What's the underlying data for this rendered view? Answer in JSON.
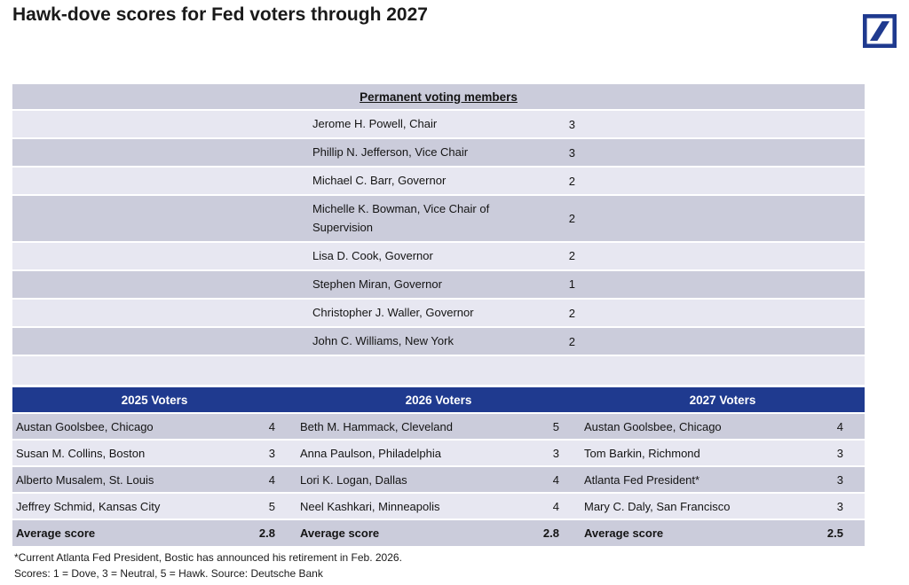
{
  "page_title": "Hawk-dove scores for Fed voters through 2027",
  "icons": {
    "logo": "deutsche-bank-logo"
  },
  "colors": {
    "accent_navy": "#1F3A8F",
    "row_dark": "#cbccdb",
    "row_light": "#e7e7f1",
    "text": "#141414",
    "header_text": "#ffffff"
  },
  "chart_data": {
    "type": "table",
    "title": "Hawk-dove scores for Fed voters through 2027",
    "score_scale": "1 = Dove, 3 = Neutral, 5 = Hawk",
    "permanent": {
      "header": "Permanent voting members",
      "rows": [
        {
          "name": "Jerome H. Powell, Chair",
          "score": "3"
        },
        {
          "name": "Phillip N. Jefferson, Vice Chair",
          "score": "3"
        },
        {
          "name": "Michael C. Barr, Governor",
          "score": "2"
        },
        {
          "name": "Michelle K. Bowman, Vice Chair of Supervision",
          "score": "2"
        },
        {
          "name": "Lisa D. Cook, Governor",
          "score": "2"
        },
        {
          "name": "Stephen Miran, Governor",
          "score": "1"
        },
        {
          "name": "Christopher J. Waller, Governor",
          "score": "2"
        },
        {
          "name": "John C. Williams, New York",
          "score": "2"
        }
      ]
    },
    "voters": {
      "columns": [
        {
          "header": "2025 Voters",
          "rows": [
            {
              "name": "Austan Goolsbee, Chicago",
              "score": "4"
            },
            {
              "name": "Susan M. Collins, Boston",
              "score": "3"
            },
            {
              "name": "Alberto Musalem, St. Louis",
              "score": "4"
            },
            {
              "name": "Jeffrey Schmid, Kansas City",
              "score": "5"
            }
          ],
          "average_label": "Average score",
          "average": "2.8"
        },
        {
          "header": "2026 Voters",
          "rows": [
            {
              "name": "Beth M. Hammack, Cleveland",
              "score": "5"
            },
            {
              "name": "Anna Paulson, Philadelphia",
              "score": "3"
            },
            {
              "name": "Lori K. Logan, Dallas",
              "score": "4"
            },
            {
              "name": "Neel Kashkari, Minneapolis",
              "score": "4"
            }
          ],
          "average_label": "Average score",
          "average": "2.8"
        },
        {
          "header": "2027 Voters",
          "rows": [
            {
              "name": "Austan Goolsbee, Chicago",
              "score": "4"
            },
            {
              "name": "Tom Barkin, Richmond",
              "score": "3"
            },
            {
              "name": "Atlanta Fed President*",
              "score": "3"
            },
            {
              "name": "Mary C. Daly, San Francisco",
              "score": "3"
            }
          ],
          "average_label": "Average score",
          "average": "2.5"
        }
      ]
    },
    "footnotes": [
      "*Current Atlanta Fed President, Bostic has announced his retirement in Feb. 2026.",
      "Scores: 1 = Dove, 3 = Neutral, 5 = Hawk. Source: Deutsche Bank"
    ]
  }
}
